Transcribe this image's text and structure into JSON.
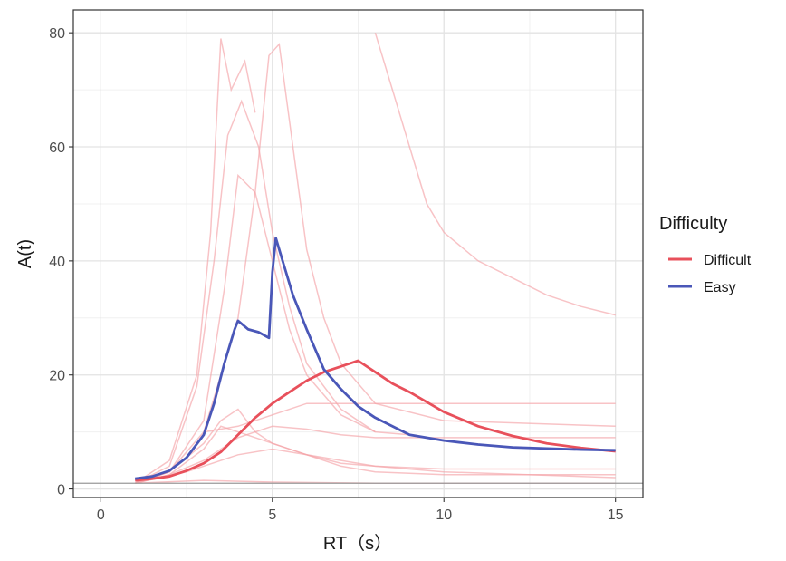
{
  "chart_data": {
    "type": "line",
    "xlabel": "RT（s）",
    "ylabel": "A(t)",
    "xlim": [
      -0.8,
      15.8
    ],
    "ylim": [
      -1.5,
      84
    ],
    "x_ticks": [
      0,
      5,
      10,
      15
    ],
    "x_tick_labels": [
      "0",
      "5",
      "10",
      "15"
    ],
    "y_ticks": [
      0,
      20,
      40,
      60,
      80
    ],
    "y_tick_labels": [
      "0",
      "20",
      "40",
      "60",
      "80"
    ],
    "grid": true,
    "reference_line_y": 1,
    "legend": {
      "title": "Difficulty",
      "placement": "right",
      "entries": [
        {
          "label": "Difficult",
          "color": "#e8505b"
        },
        {
          "label": "Easy",
          "color": "#4a57b8"
        }
      ]
    },
    "series": [
      {
        "name": "Difficult",
        "color": "#e8505b",
        "x": [
          1.0,
          1.5,
          2.0,
          2.5,
          3.0,
          3.5,
          4.0,
          4.5,
          5.0,
          5.5,
          6.0,
          6.5,
          7.0,
          7.5,
          8.0,
          8.5,
          9.0,
          10.0,
          11.0,
          12.0,
          13.0,
          14.0,
          15.0
        ],
        "y": [
          1.5,
          1.8,
          2.2,
          3.2,
          4.5,
          6.5,
          9.5,
          12.5,
          15.0,
          17.0,
          19.0,
          20.5,
          21.5,
          22.5,
          20.5,
          18.5,
          17.0,
          13.5,
          11.0,
          9.3,
          8.0,
          7.2,
          6.6
        ]
      },
      {
        "name": "Easy",
        "color": "#4a57b8",
        "x": [
          1.0,
          1.5,
          2.0,
          2.5,
          3.0,
          3.3,
          3.6,
          3.9,
          4.0,
          4.3,
          4.6,
          4.9,
          5.0,
          5.1,
          5.3,
          5.6,
          6.0,
          6.5,
          7.0,
          7.5,
          8.0,
          9.0,
          10.0,
          11.0,
          12.0,
          13.0,
          14.0,
          15.0
        ],
        "y": [
          1.8,
          2.2,
          3.2,
          5.5,
          9.5,
          15.0,
          22.0,
          28.0,
          29.5,
          28.0,
          27.5,
          26.5,
          38.0,
          44.0,
          40.0,
          34.0,
          28.0,
          21.0,
          17.5,
          14.5,
          12.5,
          9.5,
          8.5,
          7.8,
          7.3,
          7.1,
          6.9,
          6.8
        ]
      }
    ],
    "background_traces": [
      {
        "x": [
          1.0,
          2.0,
          2.8,
          3.2,
          3.5,
          3.8,
          4.2,
          4.5
        ],
        "y": [
          1.0,
          5.0,
          20.0,
          45.0,
          79.0,
          70.0,
          75.0,
          66.0
        ]
      },
      {
        "x": [
          1.0,
          2.0,
          2.8,
          3.3,
          3.7,
          4.1,
          4.6,
          5.0,
          5.5,
          6.0,
          7.0,
          8.0
        ],
        "y": [
          1.0,
          4.0,
          18.0,
          40.0,
          62.0,
          68.0,
          60.0,
          45.0,
          32.0,
          22.0,
          14.0,
          10.0
        ]
      },
      {
        "x": [
          1.0,
          2.0,
          3.0,
          3.6,
          4.0,
          4.5,
          5.0,
          5.5,
          6.0,
          7.0,
          8.0,
          9.0
        ],
        "y": [
          1.0,
          3.0,
          12.0,
          35.0,
          55.0,
          52.0,
          40.0,
          28.0,
          20.0,
          13.0,
          10.0,
          9.5
        ]
      },
      {
        "x": [
          1.0,
          2.0,
          3.0,
          4.0,
          4.5,
          4.9,
          5.2,
          5.6,
          6.0,
          6.5,
          7.0,
          8.0,
          10.0,
          15.0
        ],
        "y": [
          1.0,
          3.0,
          10.0,
          30.0,
          52.0,
          76.0,
          78.0,
          60.0,
          42.0,
          30.0,
          22.0,
          15.0,
          12.0,
          11.0
        ]
      },
      {
        "x": [
          8.0,
          8.5,
          9.0,
          9.5,
          10.0,
          11.0,
          12.0,
          13.0,
          14.0,
          15.0
        ],
        "y": [
          80.0,
          70.0,
          60.0,
          50.0,
          45.0,
          40.0,
          37.0,
          34.0,
          32.0,
          30.5
        ]
      },
      {
        "x": [
          1.0,
          2.0,
          3.0,
          3.5,
          4.0,
          4.5,
          5.0,
          6.0,
          7.0,
          8.0,
          10.0,
          15.0
        ],
        "y": [
          1.0,
          3.0,
          8.0,
          12.0,
          14.0,
          10.0,
          8.0,
          6.0,
          4.5,
          4.0,
          3.5,
          3.5
        ]
      },
      {
        "x": [
          1.0,
          2.0,
          3.0,
          3.5,
          4.0,
          5.0,
          6.0,
          7.0,
          8.0,
          10.0,
          15.0
        ],
        "y": [
          1.0,
          2.5,
          7.0,
          11.0,
          10.0,
          8.0,
          6.0,
          4.0,
          3.0,
          2.5,
          2.5
        ]
      },
      {
        "x": [
          1.0,
          2.5,
          4.0,
          5.0,
          6.0,
          8.0,
          10.0,
          15.0
        ],
        "y": [
          1.0,
          3.0,
          6.0,
          7.0,
          6.0,
          4.0,
          3.0,
          2.0
        ]
      },
      {
        "x": [
          1.0,
          2.0,
          3.0,
          4.0,
          5.0,
          6.0,
          7.0,
          8.0,
          10.0,
          15.0
        ],
        "y": [
          1.0,
          2.5,
          5.0,
          9.0,
          11.0,
          10.5,
          9.5,
          9.0,
          9.0,
          9.0
        ]
      },
      {
        "x": [
          3.0,
          4.0,
          5.0,
          6.0,
          7.0,
          8.0,
          10.0,
          15.0
        ],
        "y": [
          10.0,
          11.0,
          13.0,
          15.0,
          15.0,
          15.0,
          15.0,
          15.0
        ]
      },
      {
        "x": [
          1.0,
          3.0,
          5.0,
          8.0,
          10.0,
          15.0
        ],
        "y": [
          1.0,
          1.5,
          1.2,
          1.0,
          1.0,
          1.0
        ]
      }
    ]
  }
}
